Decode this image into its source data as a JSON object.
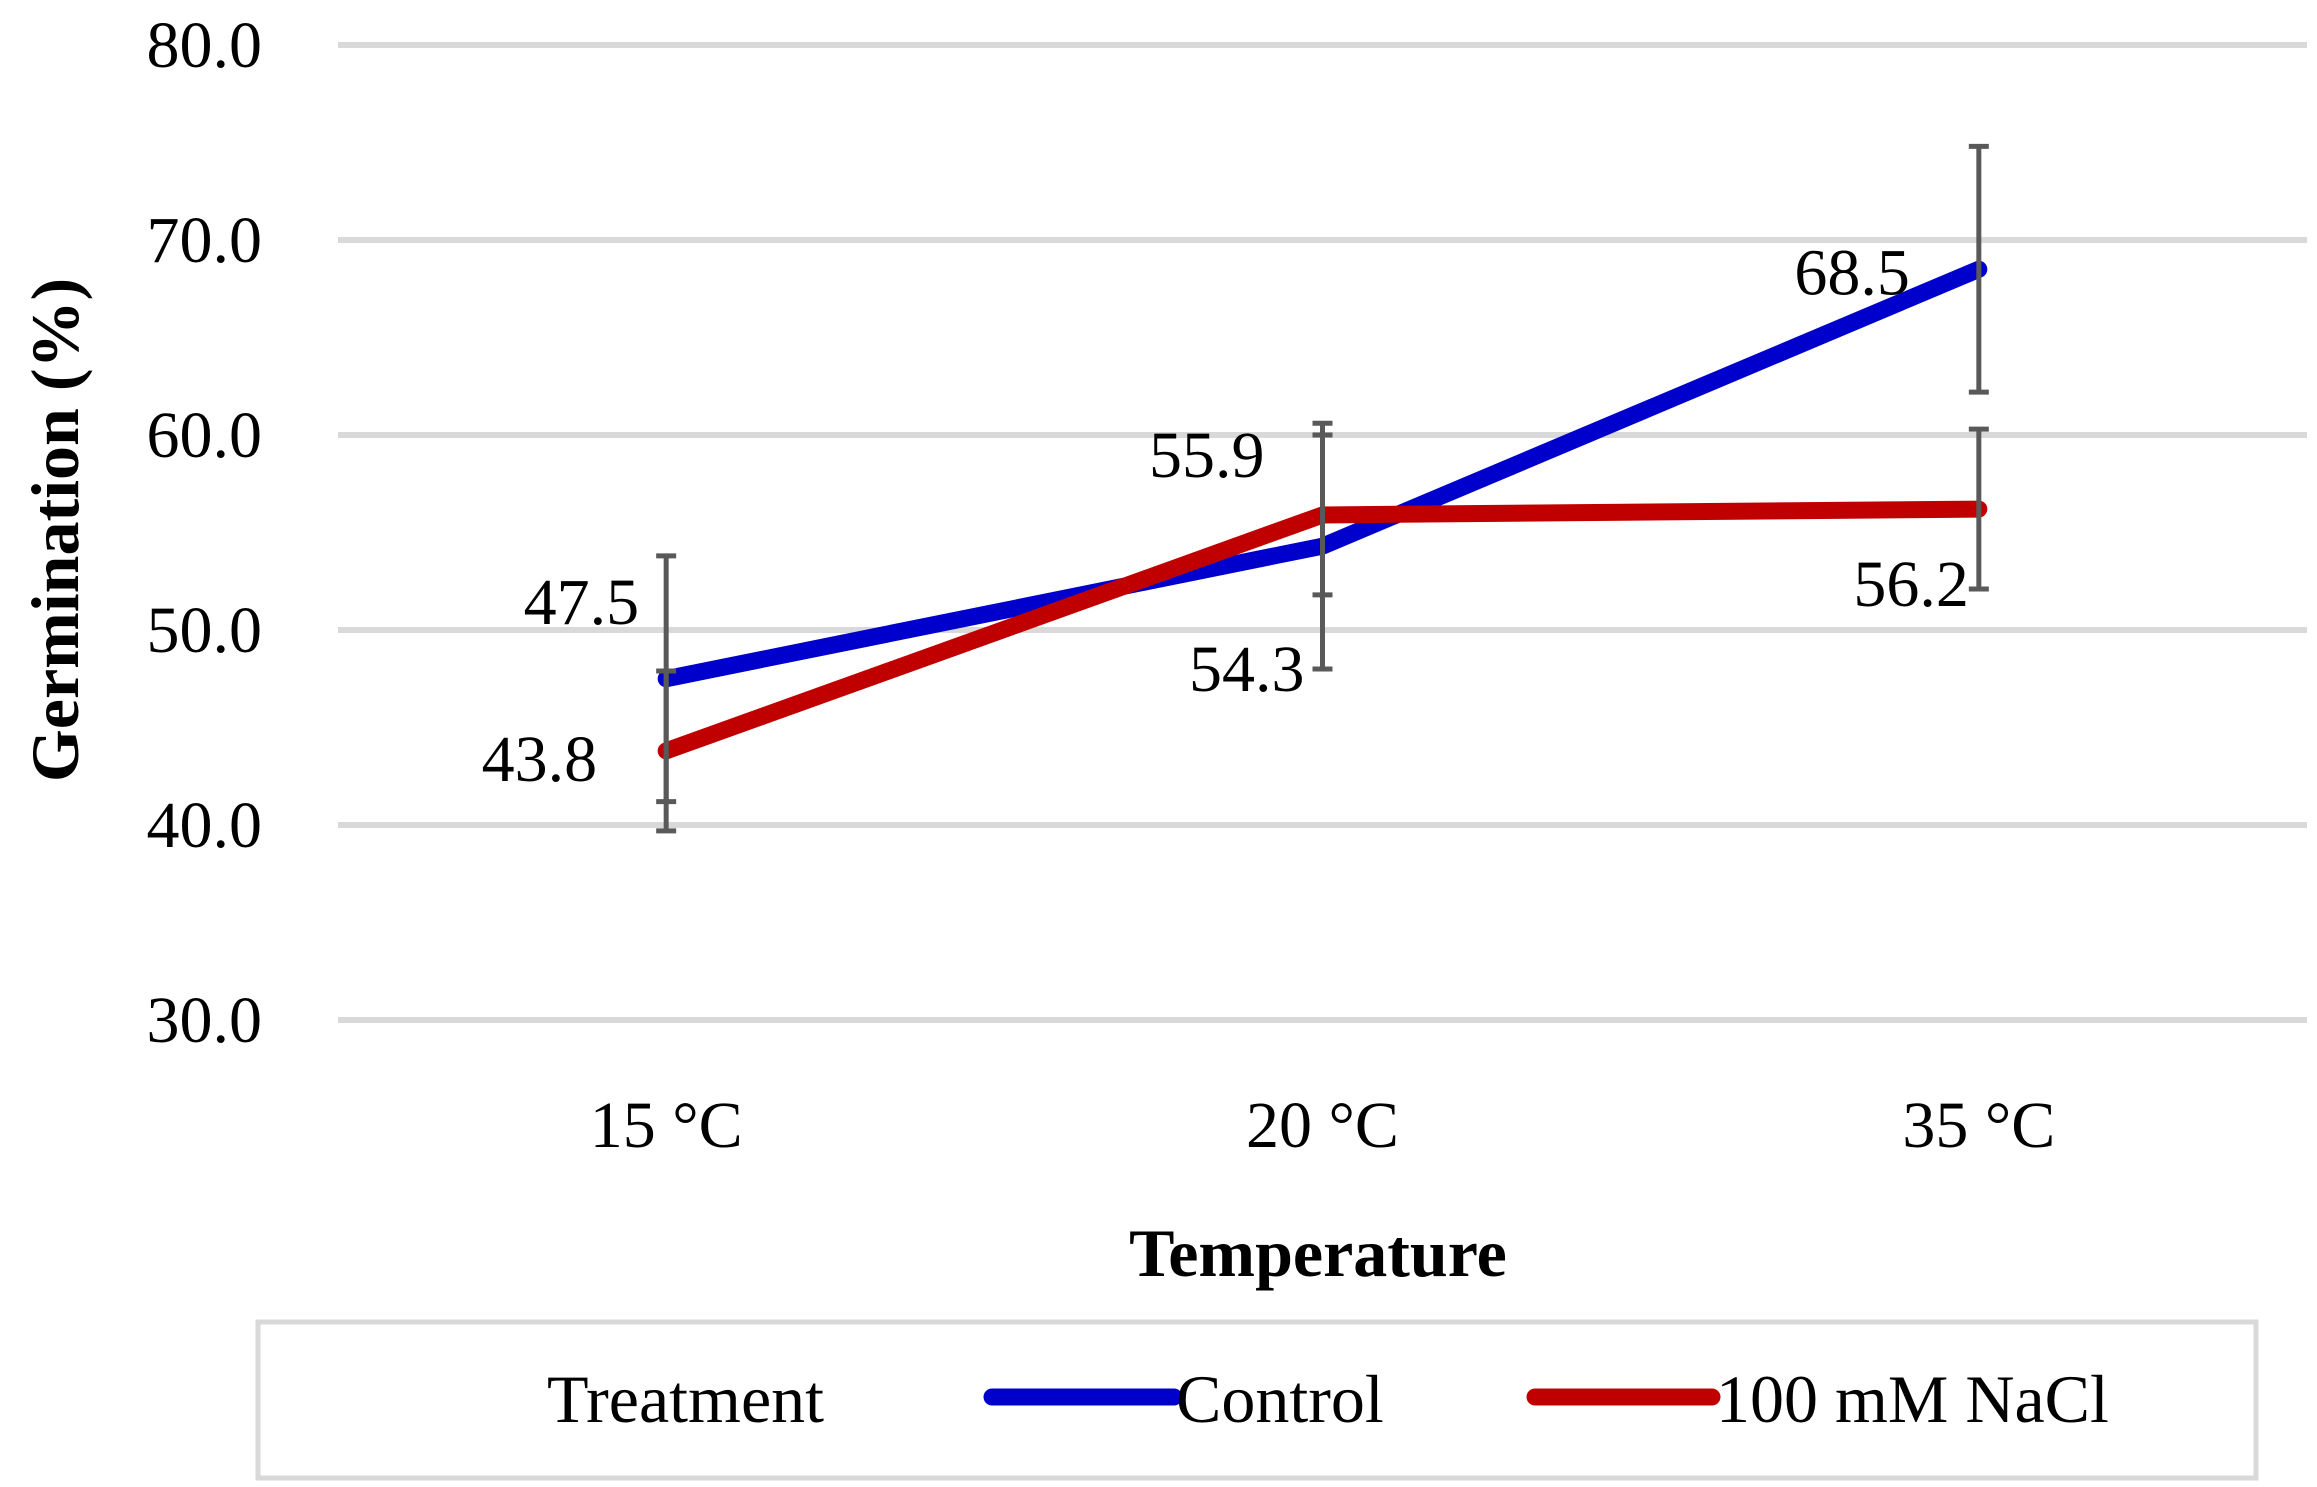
{
  "chart_data": {
    "type": "line",
    "categories": [
      "15 °C",
      "20 °C",
      "35 °C"
    ],
    "series": [
      {
        "name": "Control",
        "color": "#0000cc",
        "values": [
          47.5,
          54.3,
          68.5
        ],
        "labels": [
          "47.5",
          "54.3",
          "68.5"
        ],
        "error": [
          6.3,
          6.3,
          6.3
        ]
      },
      {
        "name": "100 mM NaCl",
        "color": "#c00000",
        "values": [
          43.8,
          55.9,
          56.2
        ],
        "labels": [
          "43.8",
          "55.9",
          "56.2"
        ],
        "error": [
          4.1,
          4.1,
          4.1
        ]
      }
    ],
    "xlabel": "Temperature",
    "ylabel": "Germination (%)",
    "ylim": [
      30,
      80
    ],
    "yticks": [
      "30.0",
      "40.0",
      "50.0",
      "60.0",
      "70.0",
      "80.0"
    ],
    "grid": true,
    "legend": {
      "title": "Treatment",
      "position": "bottom"
    }
  }
}
